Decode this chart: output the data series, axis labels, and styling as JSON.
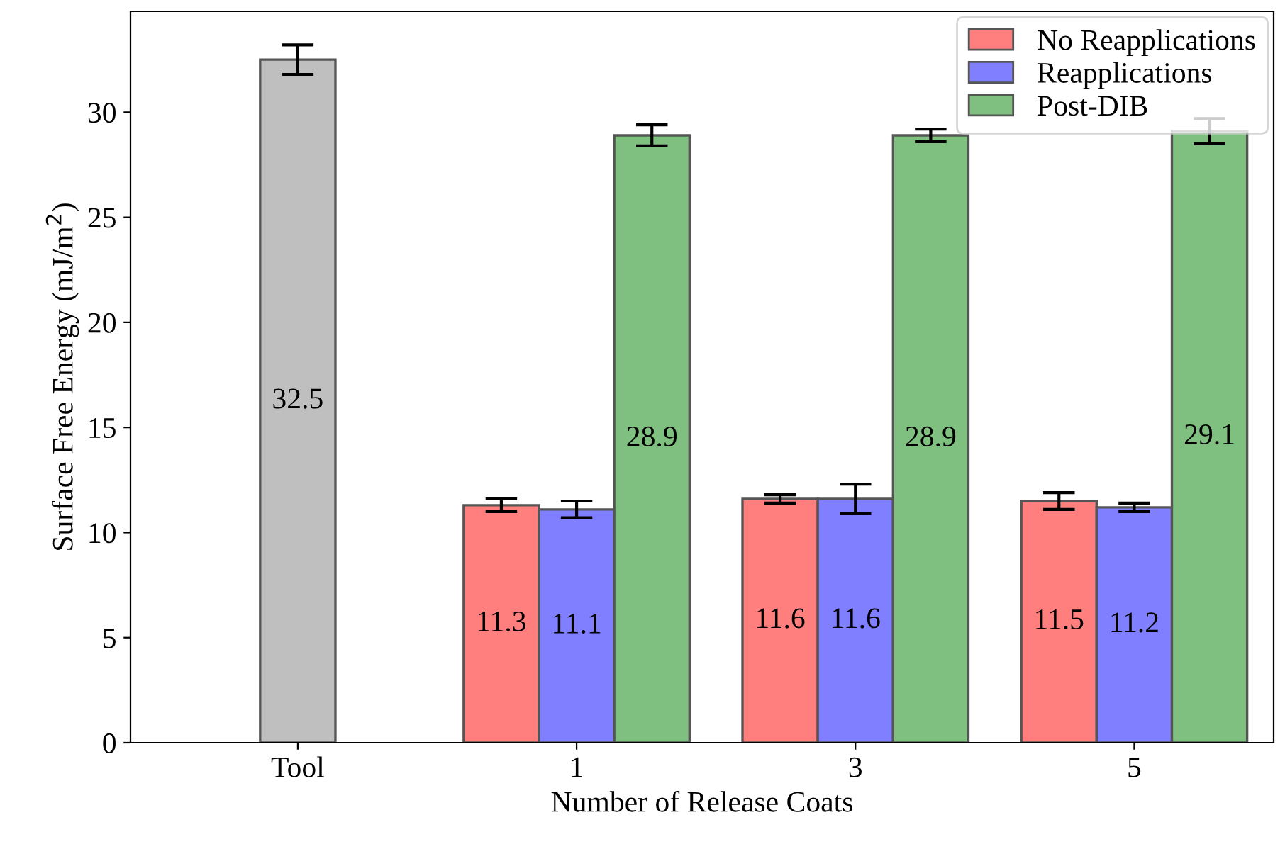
{
  "chart_data": {
    "type": "bar",
    "xlabel": "Number of Release Coats",
    "ylabel": "Surface Free Energy (mJ/m$^{2}$)",
    "categories": [
      "Tool",
      "1",
      "3",
      "5"
    ],
    "series": [
      {
        "color": "#bfbfbf",
        "values": [
          32.5,
          null,
          null,
          null
        ],
        "errors": [
          0.7,
          null,
          null,
          null
        ]
      },
      {
        "name": "No Reapplications",
        "color": "#ff7f7f",
        "values": [
          null,
          11.3,
          11.6,
          11.5
        ],
        "errors": [
          null,
          0.3,
          0.2,
          0.4
        ]
      },
      {
        "name": "Reapplications",
        "color": "#7f7fff",
        "values": [
          null,
          11.1,
          11.6,
          11.2
        ],
        "errors": [
          null,
          0.4,
          0.7,
          0.2
        ]
      },
      {
        "name": "Post-DIB",
        "color": "#7fbf7f",
        "values": [
          null,
          28.9,
          28.9,
          29.1
        ],
        "errors": [
          null,
          0.5,
          0.3,
          0.6
        ]
      }
    ],
    "ylim": [
      0,
      34.8
    ],
    "yticks": [
      0,
      5,
      10,
      15,
      20,
      25,
      30
    ],
    "data_labels": true,
    "legend": "top right",
    "grid": false
  }
}
